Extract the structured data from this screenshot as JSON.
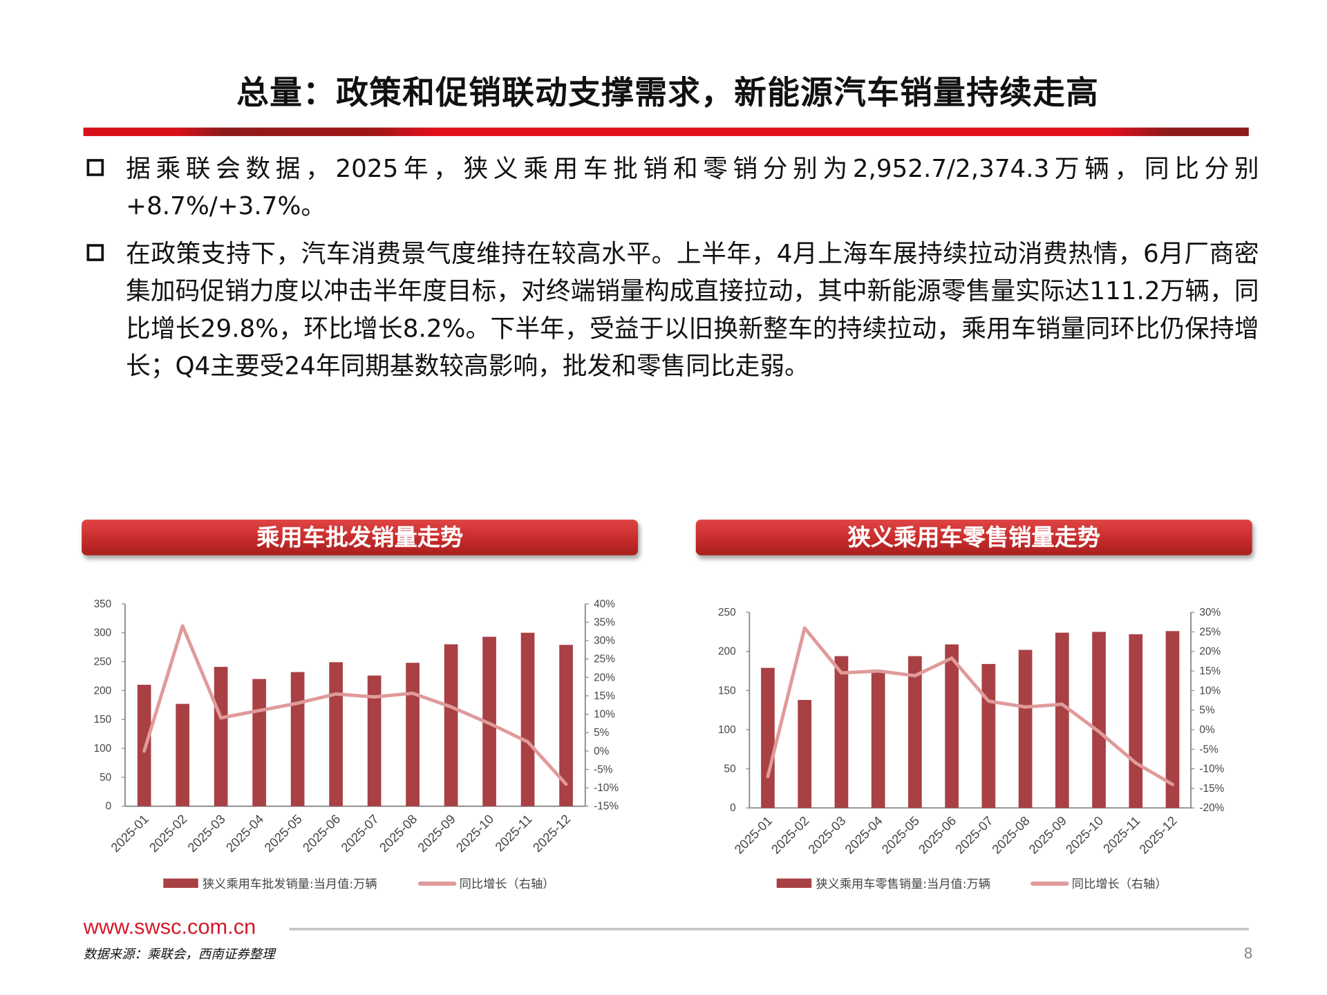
{
  "title": "总量：政策和促销联动支撑需求，新能源汽车销量持续走高",
  "bullets": [
    "据乘联会数据，2025年，狭义乘用车批销和零销分别为2,952.7/2,374.3万辆，同比分别+8.7%/+3.7%。",
    "在政策支持下，汽车消费景气度维持在较高水平。上半年，4月上海车展持续拉动消费热情，6月厂商密集加码促销力度以冲击半年度目标，对终端销量构成直接拉动，其中新能源零售量实际达111.2万辆，同比增长29.8%，环比增长8.2%。下半年，受益于以旧换新整车的持续拉动，乘用车销量同环比仍保持增长；Q4主要受24年同期基数较高影响，批发和零售同比走弱。"
  ],
  "colors": {
    "bar": "#a84044",
    "line": "#e09a9a",
    "accent": "#d3182a"
  },
  "chart_data": [
    {
      "header": "乘用车批发销量走势",
      "type": "bar+line",
      "categories": [
        "2025-01",
        "2025-02",
        "2025-03",
        "2025-04",
        "2025-05",
        "2025-06",
        "2025-07",
        "2025-08",
        "2025-09",
        "2025-10",
        "2025-11",
        "2025-12"
      ],
      "series": [
        {
          "name": "狭义乘用车批发销量:当月值:万辆",
          "type": "bar",
          "axis": "left",
          "values": [
            210,
            177,
            241,
            220,
            232,
            249,
            226,
            248,
            280,
            293,
            300,
            279
          ]
        },
        {
          "name": "同比增长（右轴）",
          "type": "line",
          "axis": "right",
          "values": [
            0,
            34,
            9,
            11,
            13,
            15.5,
            14.7,
            15.7,
            12,
            7.5,
            2.5,
            -9
          ]
        }
      ],
      "ylim": [
        0,
        350
      ],
      "yticks": [
        0,
        50,
        100,
        150,
        200,
        250,
        300,
        350
      ],
      "y2lim": [
        -15,
        40
      ],
      "y2ticks": [
        "-15%",
        "-10%",
        "-5%",
        "0%",
        "5%",
        "10%",
        "15%",
        "20%",
        "25%",
        "30%",
        "35%",
        "40%"
      ],
      "grid": false,
      "legend": "bottom"
    },
    {
      "header": "狭义乘用车零售销量走势",
      "type": "bar+line",
      "categories": [
        "2025-01",
        "2025-02",
        "2025-03",
        "2025-04",
        "2025-05",
        "2025-06",
        "2025-07",
        "2025-08",
        "2025-09",
        "2025-10",
        "2025-11",
        "2025-12"
      ],
      "series": [
        {
          "name": "狭义乘用车零售销量:当月值:万辆",
          "type": "bar",
          "axis": "left",
          "values": [
            179,
            138,
            194,
            173,
            194,
            209,
            184,
            202,
            224,
            225,
            222,
            226
          ]
        },
        {
          "name": "同比增长（右轴）",
          "type": "line",
          "axis": "right",
          "values": [
            -12,
            26,
            14.5,
            15,
            13.8,
            18.3,
            7.3,
            5.8,
            6.5,
            -0.5,
            -8.5,
            -14
          ]
        }
      ],
      "ylim": [
        0,
        250
      ],
      "yticks": [
        0,
        50,
        100,
        150,
        200,
        250
      ],
      "y2lim": [
        -20,
        30
      ],
      "y2ticks": [
        "-20%",
        "-15%",
        "-10%",
        "-5%",
        "0%",
        "5%",
        "10%",
        "15%",
        "20%",
        "25%",
        "30%"
      ],
      "grid": false,
      "legend": "bottom"
    }
  ],
  "footer": {
    "url": "www.swsc.com.cn",
    "source": "数据来源：乘联会，西南证券整理",
    "page": "8"
  }
}
